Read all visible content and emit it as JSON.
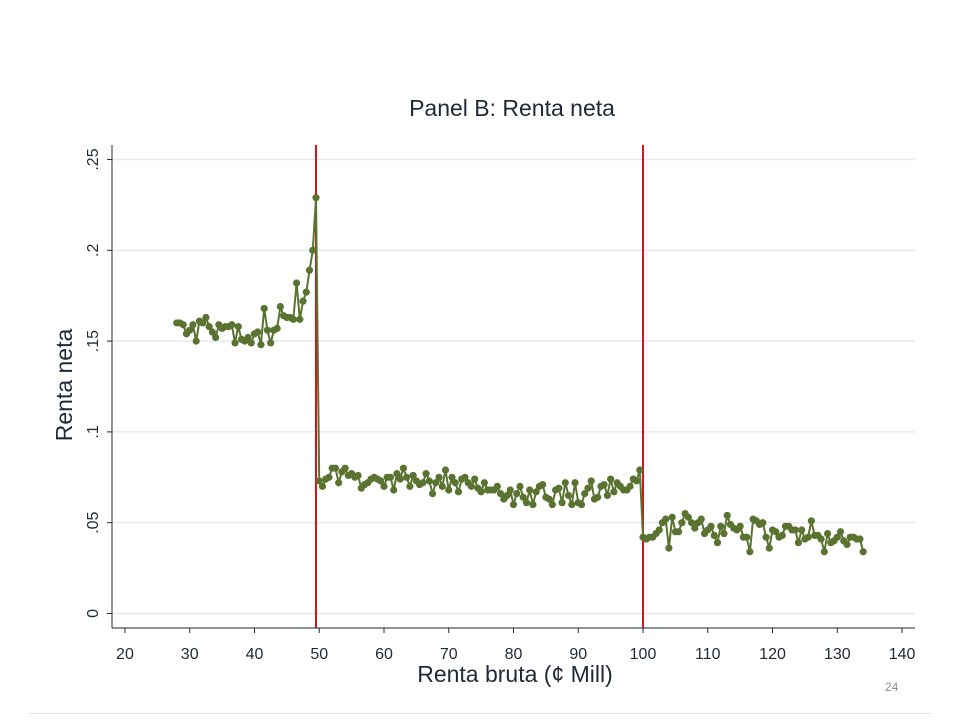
{
  "page_number": "24",
  "colors": {
    "series": "#5a7330",
    "cutoff_lines": "#d2141a",
    "grid": "#e4eaee",
    "text": "#1f2a36"
  },
  "chart_data": {
    "type": "line",
    "title": "Panel B: Renta neta",
    "xlabel": "Renta bruta (¢ Mill)",
    "ylabel": "Renta neta",
    "xlim": [
      18,
      142
    ],
    "ylim": [
      -0.008,
      0.258
    ],
    "x_ticks": [
      "20",
      "30",
      "40",
      "50",
      "60",
      "70",
      "80",
      "90",
      "100",
      "110",
      "120",
      "130",
      "140"
    ],
    "y_ticks": [
      "0",
      ".05",
      ".1",
      ".15",
      ".2",
      ".25"
    ],
    "grid": true,
    "vertical_lines": [
      49.5,
      100
    ],
    "series": [
      {
        "values": [
          [
            28,
            0.16
          ],
          [
            28.5,
            0.16
          ],
          [
            29,
            0.159
          ],
          [
            29.5,
            0.154
          ],
          [
            30,
            0.156
          ],
          [
            30.5,
            0.159
          ],
          [
            31,
            0.15
          ],
          [
            31.5,
            0.161
          ],
          [
            32,
            0.16
          ],
          [
            32.5,
            0.163
          ],
          [
            33,
            0.158
          ],
          [
            33.5,
            0.155
          ],
          [
            34,
            0.152
          ],
          [
            34.5,
            0.159
          ],
          [
            35,
            0.157
          ],
          [
            35.5,
            0.158
          ],
          [
            36,
            0.158
          ],
          [
            36.5,
            0.159
          ],
          [
            37,
            0.149
          ],
          [
            37.5,
            0.158
          ],
          [
            38,
            0.151
          ],
          [
            38.5,
            0.15
          ],
          [
            39,
            0.152
          ],
          [
            39.5,
            0.149
          ],
          [
            40,
            0.154
          ],
          [
            40.5,
            0.155
          ],
          [
            41,
            0.148
          ],
          [
            41.5,
            0.168
          ],
          [
            42,
            0.156
          ],
          [
            42.5,
            0.149
          ],
          [
            43,
            0.156
          ],
          [
            43.5,
            0.157
          ],
          [
            44,
            0.169
          ],
          [
            44.5,
            0.164
          ],
          [
            45,
            0.163
          ],
          [
            45.5,
            0.163
          ],
          [
            46,
            0.162
          ],
          [
            46.5,
            0.182
          ],
          [
            47,
            0.162
          ],
          [
            47.5,
            0.172
          ],
          [
            48,
            0.177
          ],
          [
            48.5,
            0.189
          ],
          [
            49,
            0.2
          ],
          [
            49.5,
            0.229
          ],
          [
            50,
            0.073
          ],
          [
            50.5,
            0.07
          ],
          [
            51,
            0.074
          ],
          [
            51.5,
            0.075
          ],
          [
            52,
            0.08
          ],
          [
            52.5,
            0.08
          ],
          [
            53,
            0.072
          ],
          [
            53.5,
            0.078
          ],
          [
            54,
            0.08
          ],
          [
            54.5,
            0.076
          ],
          [
            55,
            0.077
          ],
          [
            55.5,
            0.075
          ],
          [
            56,
            0.076
          ],
          [
            56.5,
            0.069
          ],
          [
            57,
            0.071
          ],
          [
            57.5,
            0.072
          ],
          [
            58,
            0.074
          ],
          [
            58.5,
            0.075
          ],
          [
            59,
            0.074
          ],
          [
            59.5,
            0.073
          ],
          [
            60,
            0.07
          ],
          [
            60.5,
            0.075
          ],
          [
            61,
            0.075
          ],
          [
            61.5,
            0.068
          ],
          [
            62,
            0.077
          ],
          [
            62.5,
            0.074
          ],
          [
            63,
            0.08
          ],
          [
            63.5,
            0.075
          ],
          [
            64,
            0.07
          ],
          [
            64.5,
            0.076
          ],
          [
            65,
            0.073
          ],
          [
            65.5,
            0.071
          ],
          [
            66,
            0.072
          ],
          [
            66.5,
            0.077
          ],
          [
            67,
            0.073
          ],
          [
            67.5,
            0.066
          ],
          [
            68,
            0.072
          ],
          [
            68.5,
            0.075
          ],
          [
            69,
            0.07
          ],
          [
            69.5,
            0.079
          ],
          [
            70,
            0.068
          ],
          [
            70.5,
            0.075
          ],
          [
            71,
            0.072
          ],
          [
            71.5,
            0.067
          ],
          [
            72,
            0.074
          ],
          [
            72.5,
            0.075
          ],
          [
            73,
            0.072
          ],
          [
            73.5,
            0.07
          ],
          [
            74,
            0.074
          ],
          [
            74.5,
            0.069
          ],
          [
            75,
            0.067
          ],
          [
            75.5,
            0.072
          ],
          [
            76,
            0.068
          ],
          [
            76.5,
            0.068
          ],
          [
            77,
            0.068
          ],
          [
            77.5,
            0.07
          ],
          [
            78,
            0.066
          ],
          [
            78.5,
            0.063
          ],
          [
            79,
            0.065
          ],
          [
            79.5,
            0.068
          ],
          [
            80,
            0.06
          ],
          [
            80.5,
            0.066
          ],
          [
            81,
            0.07
          ],
          [
            81.5,
            0.064
          ],
          [
            82,
            0.061
          ],
          [
            82.5,
            0.068
          ],
          [
            83,
            0.06
          ],
          [
            83.5,
            0.067
          ],
          [
            84,
            0.07
          ],
          [
            84.5,
            0.071
          ],
          [
            85,
            0.064
          ],
          [
            85.5,
            0.063
          ],
          [
            86,
            0.06
          ],
          [
            86.5,
            0.068
          ],
          [
            87,
            0.069
          ],
          [
            87.5,
            0.061
          ],
          [
            88,
            0.072
          ],
          [
            88.5,
            0.065
          ],
          [
            89,
            0.06
          ],
          [
            89.5,
            0.072
          ],
          [
            90,
            0.061
          ],
          [
            90.5,
            0.06
          ],
          [
            91,
            0.066
          ],
          [
            91.5,
            0.069
          ],
          [
            92,
            0.073
          ],
          [
            92.5,
            0.063
          ],
          [
            93,
            0.064
          ],
          [
            93.5,
            0.07
          ],
          [
            94,
            0.071
          ],
          [
            94.5,
            0.065
          ],
          [
            95,
            0.074
          ],
          [
            95.5,
            0.067
          ],
          [
            96,
            0.072
          ],
          [
            96.5,
            0.07
          ],
          [
            97,
            0.068
          ],
          [
            97.5,
            0.068
          ],
          [
            98,
            0.07
          ],
          [
            98.5,
            0.074
          ],
          [
            99,
            0.073
          ],
          [
            99.5,
            0.079
          ],
          [
            100,
            0.042
          ],
          [
            100.5,
            0.041
          ],
          [
            101,
            0.042
          ],
          [
            101.5,
            0.042
          ],
          [
            102,
            0.044
          ],
          [
            102.5,
            0.046
          ],
          [
            103,
            0.05
          ],
          [
            103.5,
            0.052
          ],
          [
            104,
            0.036
          ],
          [
            104.5,
            0.053
          ],
          [
            105,
            0.045
          ],
          [
            105.5,
            0.045
          ],
          [
            106,
            0.05
          ],
          [
            106.5,
            0.055
          ],
          [
            107,
            0.053
          ],
          [
            107.5,
            0.05
          ],
          [
            108,
            0.047
          ],
          [
            108.5,
            0.05
          ],
          [
            109,
            0.052
          ],
          [
            109.5,
            0.044
          ],
          [
            110,
            0.046
          ],
          [
            110.5,
            0.048
          ],
          [
            111,
            0.043
          ],
          [
            111.5,
            0.039
          ],
          [
            112,
            0.048
          ],
          [
            112.5,
            0.044
          ],
          [
            113,
            0.054
          ],
          [
            113.5,
            0.049
          ],
          [
            114,
            0.047
          ],
          [
            114.5,
            0.046
          ],
          [
            115,
            0.048
          ],
          [
            115.5,
            0.042
          ],
          [
            116,
            0.042
          ],
          [
            116.5,
            0.034
          ],
          [
            117,
            0.052
          ],
          [
            117.5,
            0.051
          ],
          [
            118,
            0.049
          ],
          [
            118.5,
            0.05
          ],
          [
            119,
            0.042
          ],
          [
            119.5,
            0.036
          ],
          [
            120,
            0.046
          ],
          [
            120.5,
            0.045
          ],
          [
            121,
            0.042
          ],
          [
            121.5,
            0.043
          ],
          [
            122,
            0.048
          ],
          [
            122.5,
            0.048
          ],
          [
            123,
            0.046
          ],
          [
            123.5,
            0.046
          ],
          [
            124,
            0.039
          ],
          [
            124.5,
            0.046
          ],
          [
            125,
            0.041
          ],
          [
            125.5,
            0.042
          ],
          [
            126,
            0.051
          ],
          [
            126.5,
            0.043
          ],
          [
            127,
            0.043
          ],
          [
            127.5,
            0.041
          ],
          [
            128,
            0.034
          ],
          [
            128.5,
            0.044
          ],
          [
            129,
            0.039
          ],
          [
            129.5,
            0.04
          ],
          [
            130,
            0.042
          ],
          [
            130.5,
            0.045
          ],
          [
            131,
            0.04
          ],
          [
            131.5,
            0.038
          ],
          [
            132,
            0.042
          ],
          [
            132.5,
            0.042
          ],
          [
            133,
            0.041
          ],
          [
            133.5,
            0.041
          ],
          [
            134,
            0.034
          ]
        ]
      }
    ]
  }
}
